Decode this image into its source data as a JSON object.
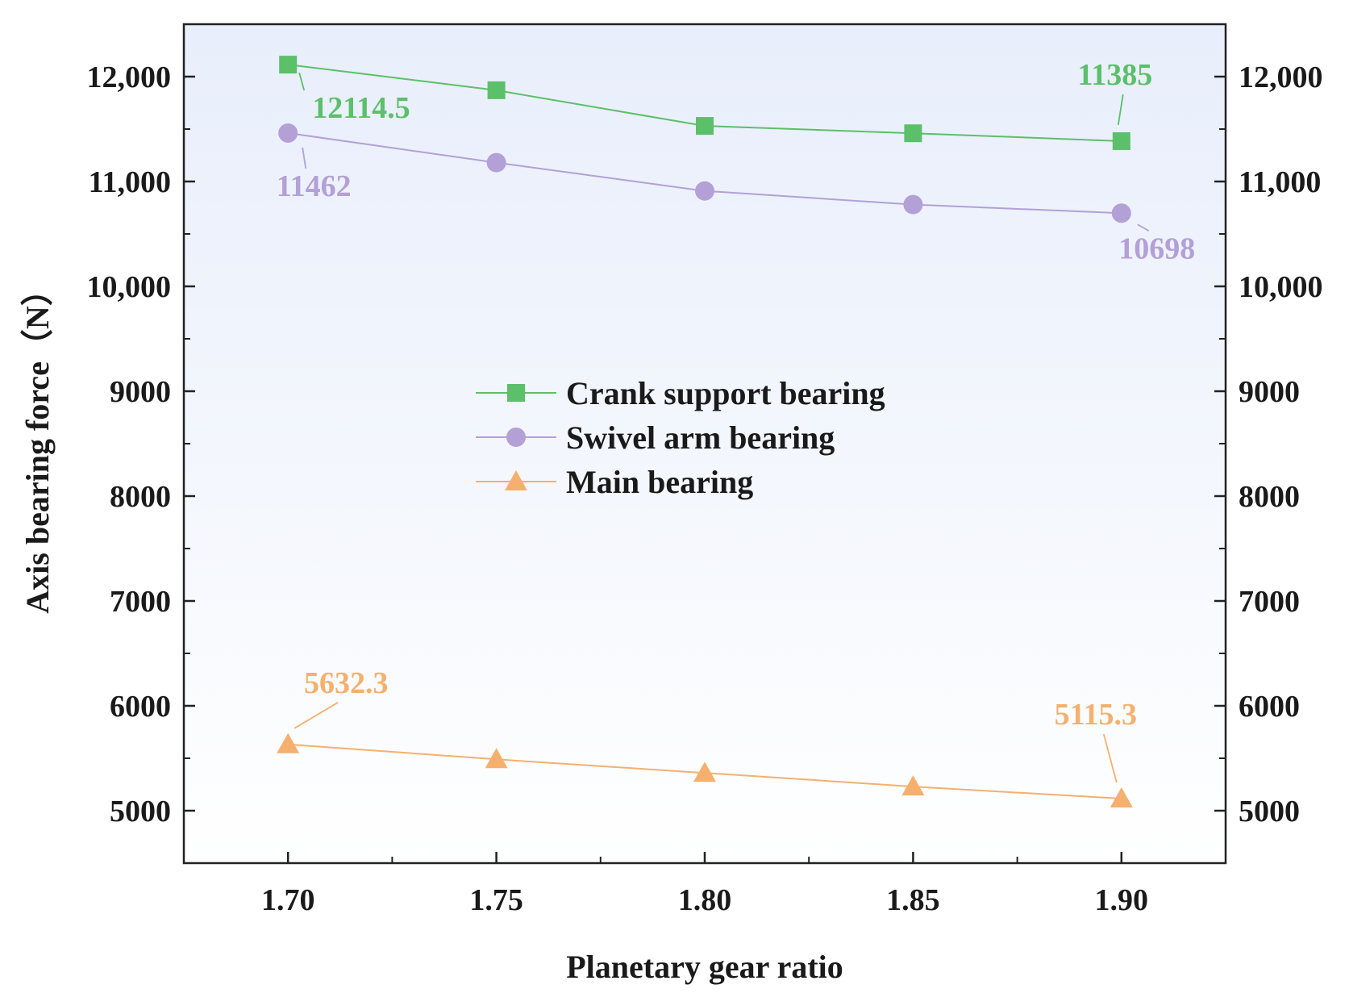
{
  "chart_data": {
    "type": "line",
    "title": "",
    "xlabel": "Planetary gear ratio",
    "ylabel": "Axis bearing force（N）",
    "x": [
      1.7,
      1.75,
      1.8,
      1.85,
      1.9
    ],
    "x_tick_labels": [
      "1.70",
      "1.75",
      "1.80",
      "1.85",
      "1.90"
    ],
    "xlim": [
      1.675,
      1.925
    ],
    "ylim": [
      4500,
      12500
    ],
    "y_ticks": [
      5000,
      6000,
      7000,
      8000,
      9000,
      10000,
      11000,
      12000
    ],
    "y_tick_labels": [
      "5000",
      "6000",
      "7000",
      "8000",
      "9000",
      "10,000",
      "11,000",
      "12,000"
    ],
    "right_axis_mirrored": true,
    "grid": false,
    "legend_position": "center",
    "series": [
      {
        "name": "Crank support bearing",
        "color": "#5cbf6a",
        "marker": "square",
        "values": [
          12114.5,
          11870,
          11530,
          11460,
          11385
        ],
        "annotations": [
          {
            "index": 0,
            "text": "12114.5"
          },
          {
            "index": 4,
            "text": "11385"
          }
        ]
      },
      {
        "name": "Swivel arm bearing",
        "color": "#b3a0d6",
        "marker": "circle",
        "values": [
          11462,
          11180,
          10910,
          10780,
          10698
        ],
        "annotations": [
          {
            "index": 0,
            "text": "11462"
          },
          {
            "index": 4,
            "text": "10698"
          }
        ]
      },
      {
        "name": "Main bearing",
        "color": "#f5b06e",
        "marker": "triangle",
        "values": [
          5632.3,
          5490,
          5360,
          5230,
          5115.3
        ],
        "annotations": [
          {
            "index": 0,
            "text": "5632.3"
          },
          {
            "index": 4,
            "text": "5115.3"
          }
        ]
      }
    ]
  }
}
